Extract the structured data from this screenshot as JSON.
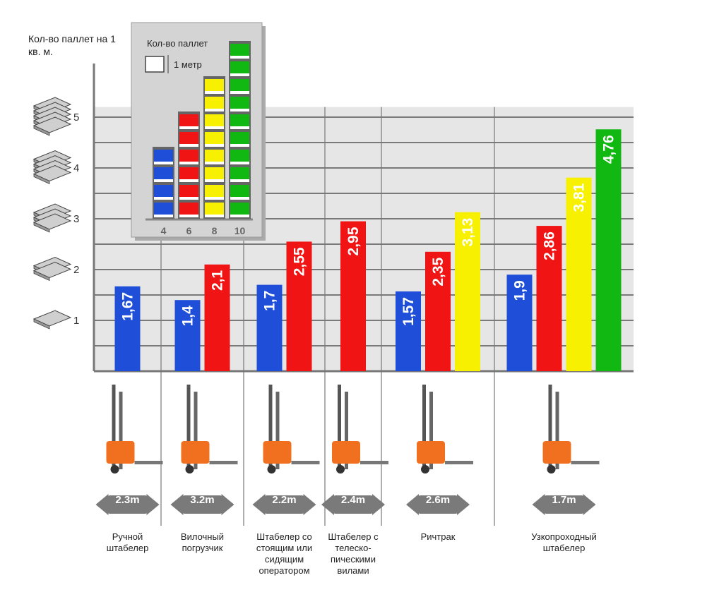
{
  "chart_data": {
    "type": "bar",
    "ylabel": "Кол-во паллет на 1 кв. м.",
    "ylim": [
      0,
      6
    ],
    "yticks": [
      1,
      2,
      3,
      4,
      5
    ],
    "grid": true,
    "categories": [
      {
        "label": "Ручной штабелер",
        "aisle_width": "2.3m",
        "bars": [
          {
            "value": 1.67,
            "text": "1,67",
            "color": "#1f4fd8"
          }
        ]
      },
      {
        "label": "Вилочный погрузчик",
        "aisle_width": "3.2m",
        "bars": [
          {
            "value": 1.4,
            "text": "1,4",
            "color": "#1f4fd8"
          },
          {
            "value": 2.1,
            "text": "2,1",
            "color": "#f01414"
          }
        ]
      },
      {
        "label": "Штабелер со стоящим или сидящим оператором",
        "aisle_width": "2.2m",
        "bars": [
          {
            "value": 1.7,
            "text": "1,7",
            "color": "#1f4fd8"
          },
          {
            "value": 2.55,
            "text": "2,55",
            "color": "#f01414"
          }
        ]
      },
      {
        "label": "Штабелер с телеско-пическими вилами",
        "aisle_width": "2.4m",
        "bars": [
          {
            "value": 2.95,
            "text": "2,95",
            "color": "#f01414"
          }
        ]
      },
      {
        "label": "Ричтрак",
        "aisle_width": "2.6m",
        "bars": [
          {
            "value": 1.57,
            "text": "1,57",
            "color": "#1f4fd8"
          },
          {
            "value": 2.35,
            "text": "2,35",
            "color": "#f01414"
          },
          {
            "value": 3.13,
            "text": "3,13",
            "color": "#f7f000"
          }
        ]
      },
      {
        "label": "Узкопроходный штабелер",
        "aisle_width": "1.7m",
        "bars": [
          {
            "value": 1.9,
            "text": "1,9",
            "color": "#1f4fd8"
          },
          {
            "value": 2.86,
            "text": "2,86",
            "color": "#f01414"
          },
          {
            "value": 3.81,
            "text": "3,81",
            "color": "#f7f000"
          },
          {
            "value": 4.76,
            "text": "4,76",
            "color": "#12b812"
          }
        ]
      }
    ],
    "legend": {
      "title": "Кол-во паллет",
      "unit_label": "1 метр",
      "placement": "top-left",
      "entries": [
        {
          "label": "4",
          "color": "#1f4fd8",
          "stack": 4
        },
        {
          "label": "6",
          "color": "#f01414",
          "stack": 6
        },
        {
          "label": "8",
          "color": "#f7f000",
          "stack": 8
        },
        {
          "label": "10",
          "color": "#12b812",
          "stack": 10
        }
      ]
    }
  },
  "icons": {
    "pallet_icon": "pallet-stack-icon",
    "arrow_icon": "double-arrow-icon",
    "forklift_icon": "forklift-icon"
  },
  "colors": {
    "background": "#ffffff",
    "plot_bg": "#e6e6e6",
    "grid": "#555555",
    "inset_bg": "#d4d4d4",
    "arrow": "#7a7a7a",
    "forklift_accent": "#f07020"
  }
}
